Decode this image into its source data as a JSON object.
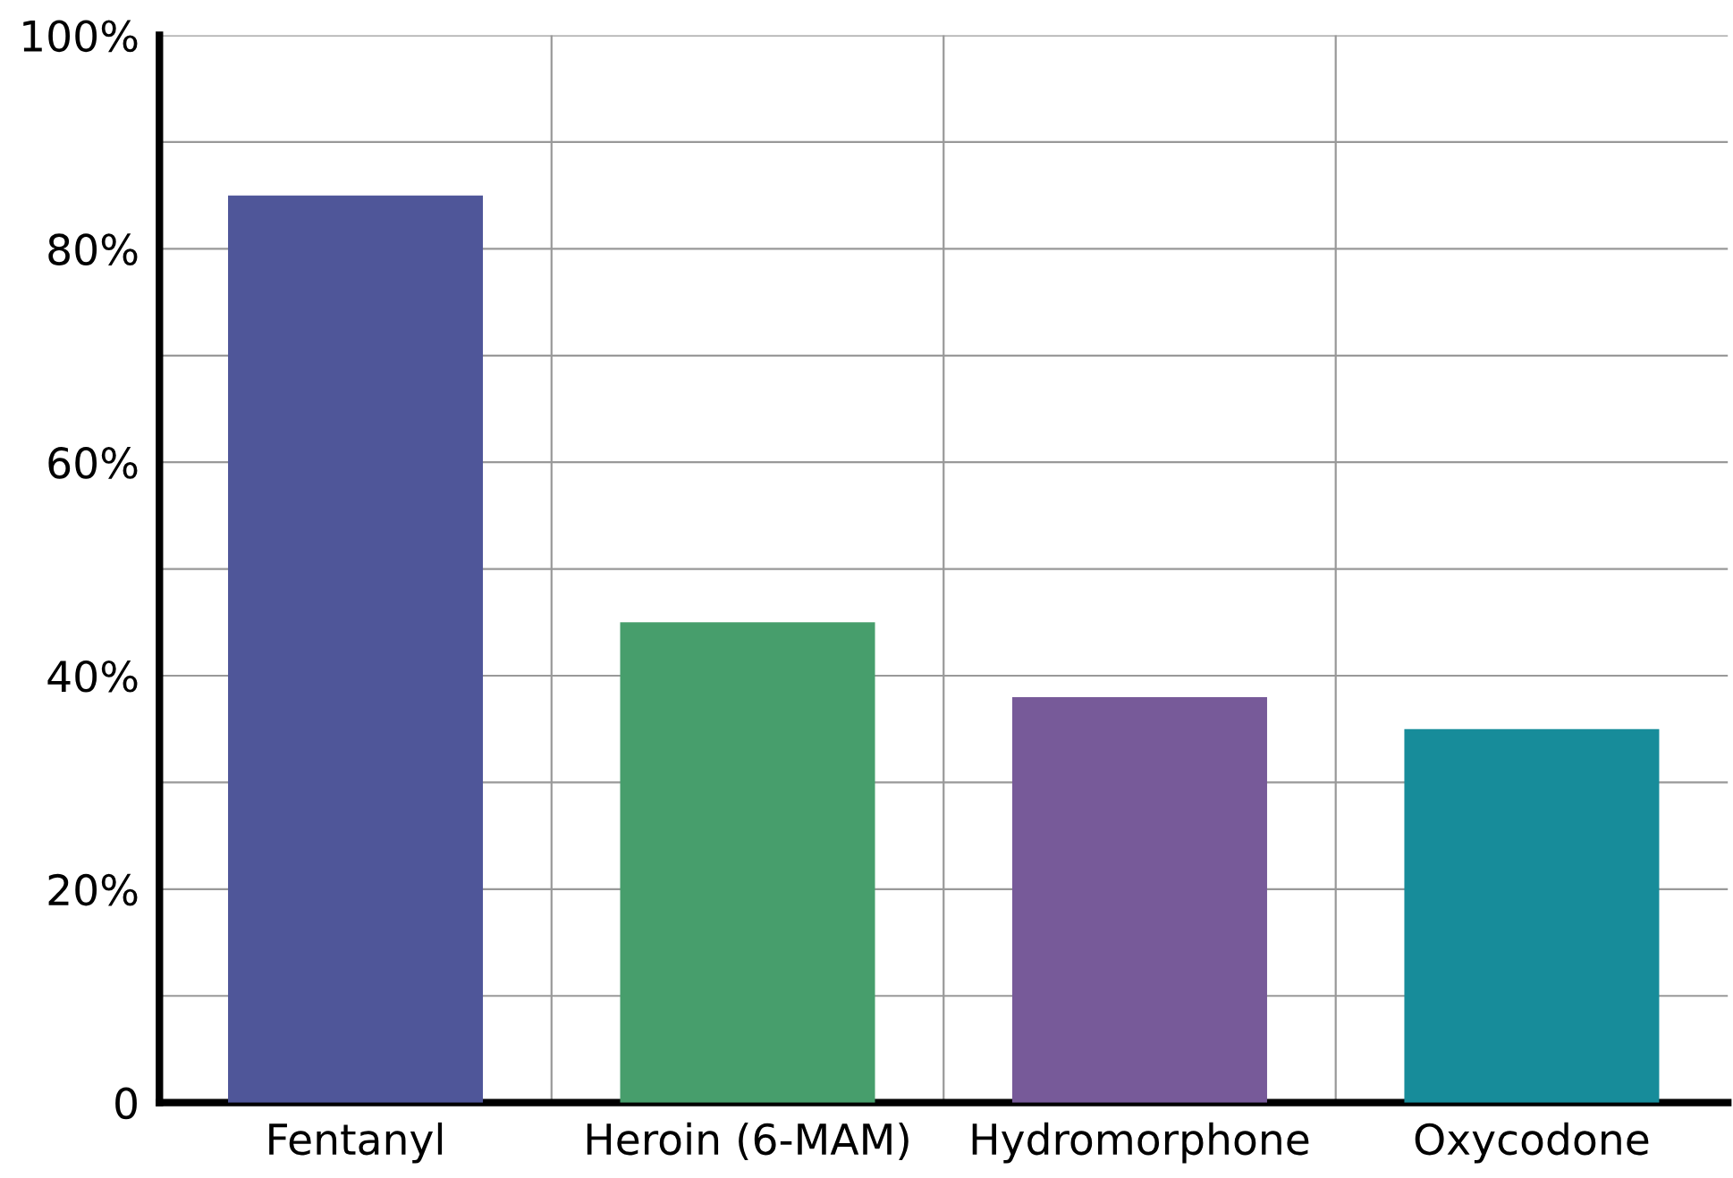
{
  "chart_data": {
    "type": "bar",
    "categories": [
      "Fentanyl",
      "Heroin (6-MAM)",
      "Hydromorphone",
      "Oxycodone"
    ],
    "values": [
      85,
      45,
      38,
      35
    ],
    "colors": [
      "#4f5699",
      "#479e6c",
      "#775a99",
      "#178c9a"
    ],
    "ylim": [
      0,
      100
    ],
    "yticks": [
      {
        "value": 0,
        "label": "0"
      },
      {
        "value": 10,
        "label": null
      },
      {
        "value": 20,
        "label": "20%"
      },
      {
        "value": 30,
        "label": null
      },
      {
        "value": 40,
        "label": "40%"
      },
      {
        "value": 50,
        "label": null
      },
      {
        "value": 60,
        "label": "60%"
      },
      {
        "value": 70,
        "label": null
      },
      {
        "value": 80,
        "label": "80%"
      },
      {
        "value": 90,
        "label": null
      },
      {
        "value": 100,
        "label": "100%"
      }
    ],
    "grid": true
  }
}
